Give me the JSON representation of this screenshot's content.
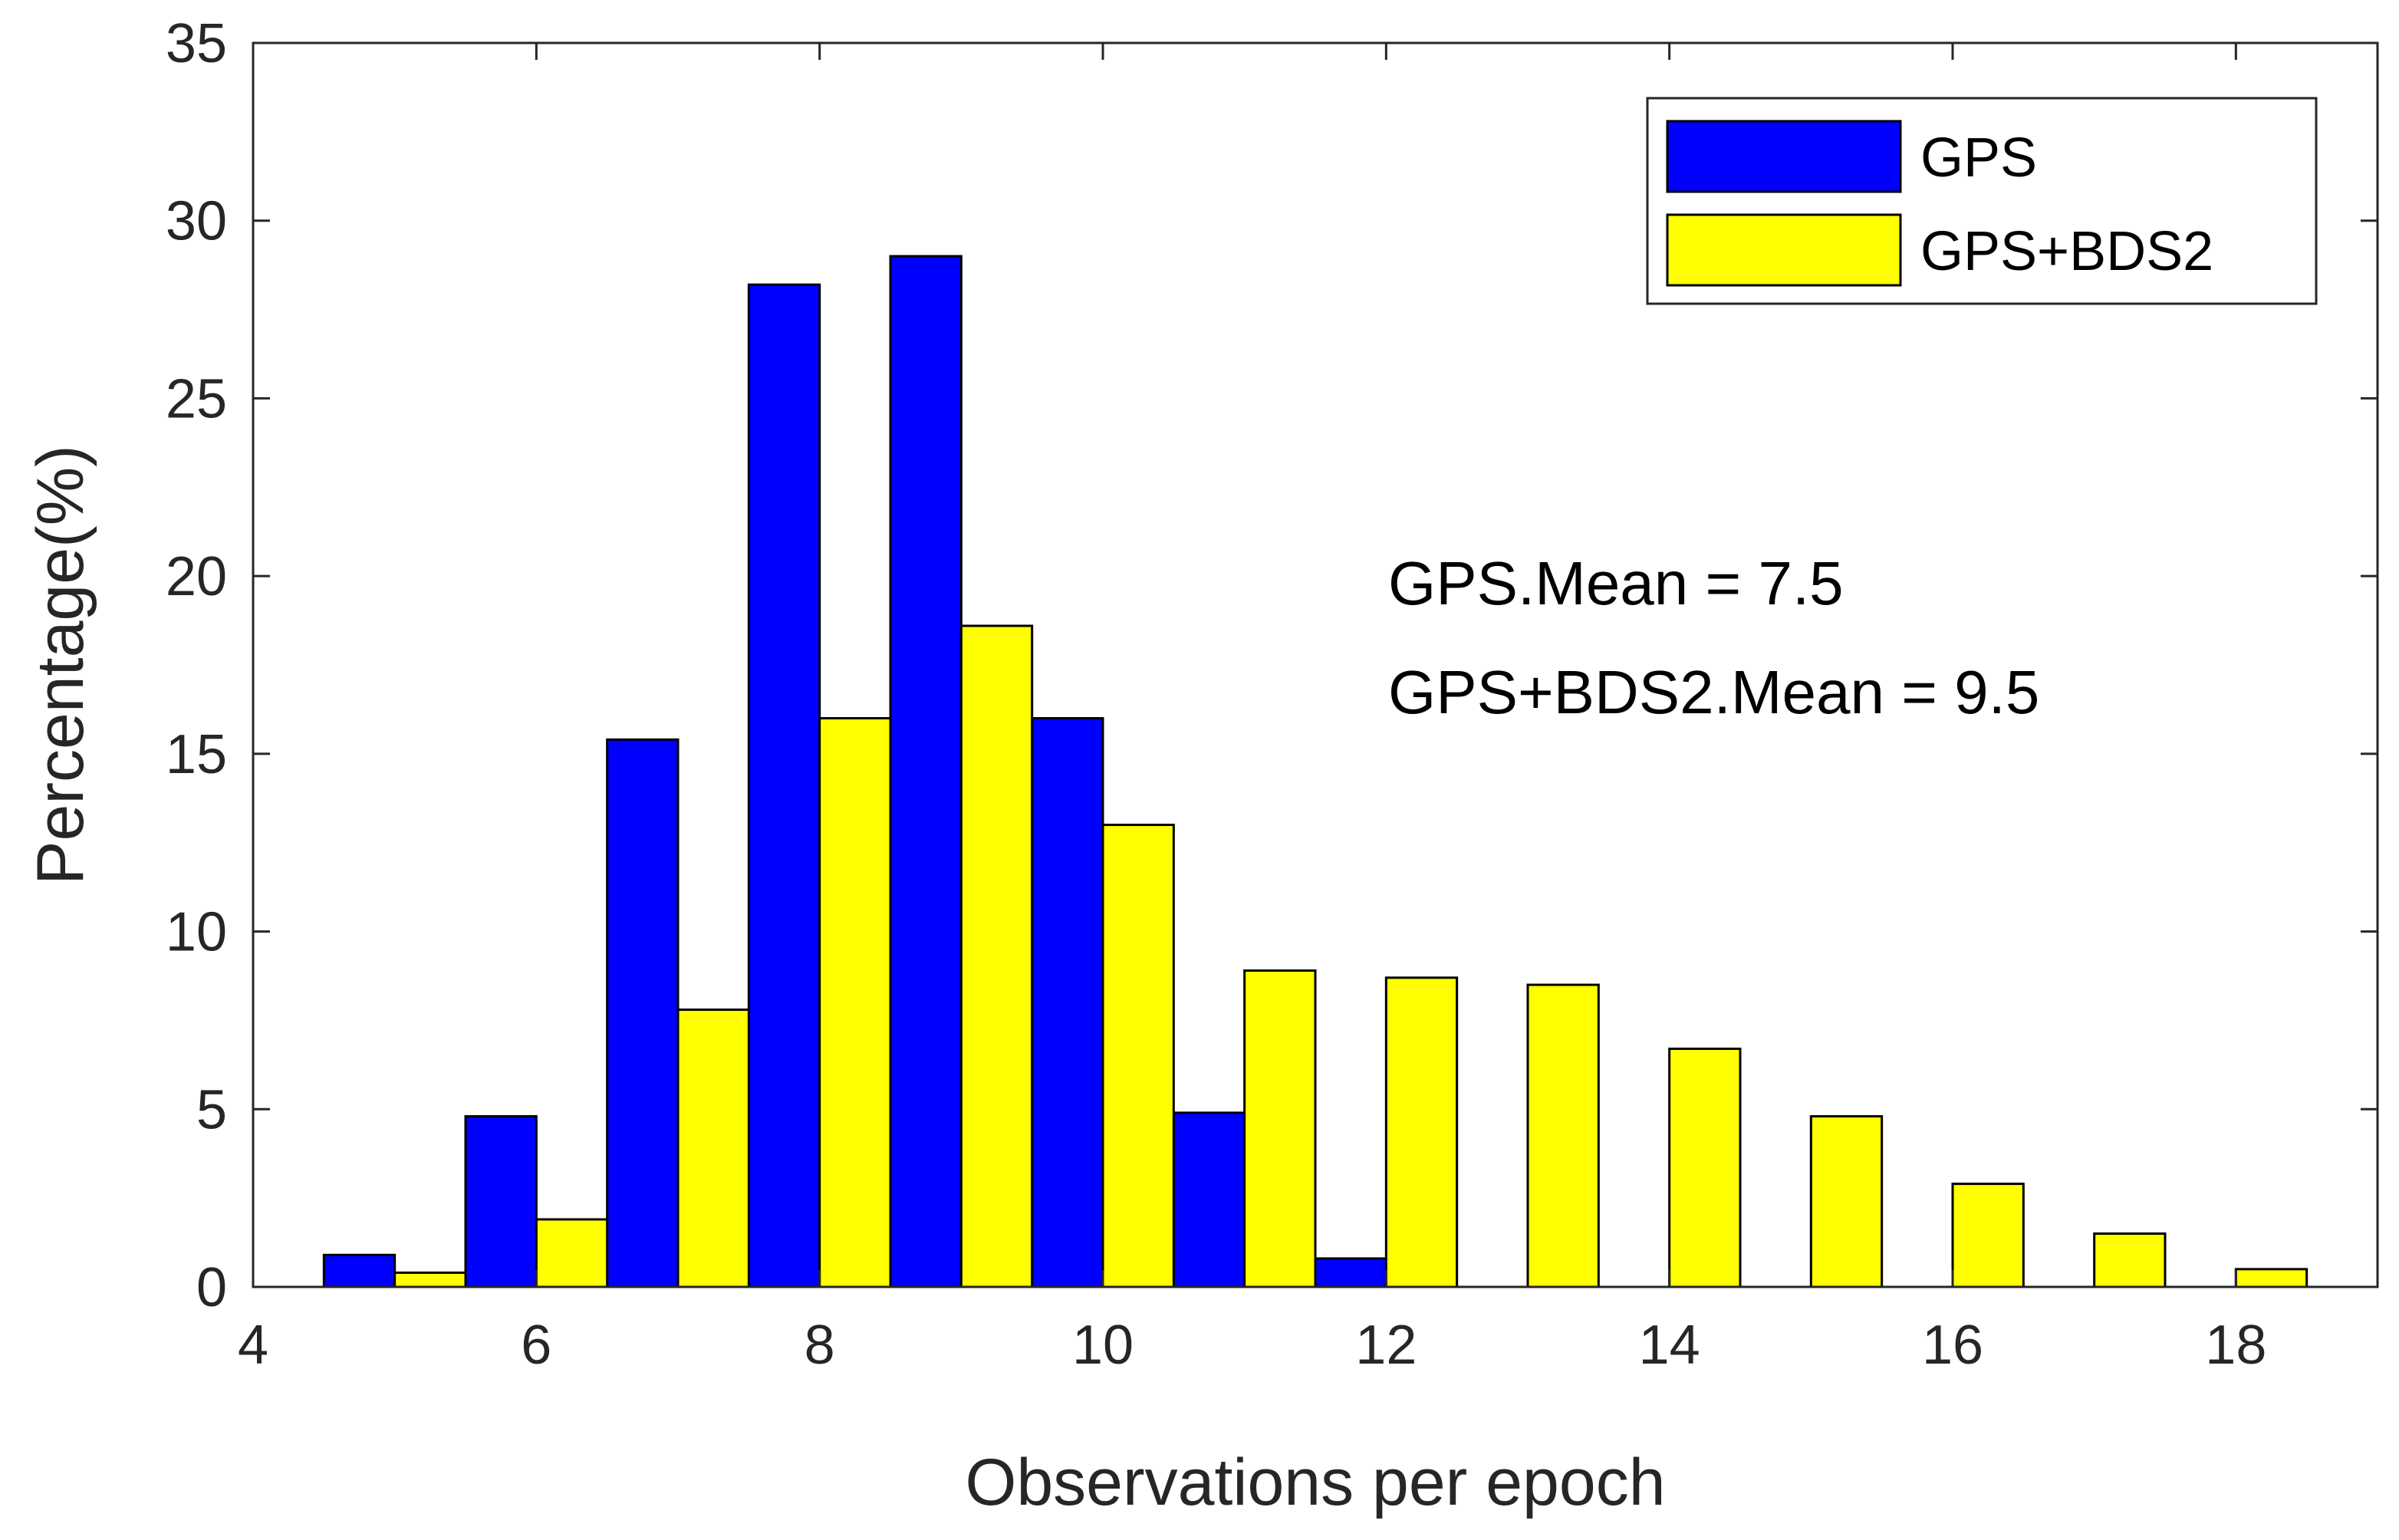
{
  "chart_data": {
    "type": "bar",
    "title": "",
    "xlabel": "Observations per epoch",
    "ylabel": "Percentage(%)",
    "xlim": [
      4,
      19
    ],
    "ylim": [
      0,
      35
    ],
    "xticks": [
      4,
      6,
      8,
      10,
      12,
      14,
      16,
      18
    ],
    "yticks": [
      0,
      5,
      10,
      15,
      20,
      25,
      30,
      35
    ],
    "bin_width": 1,
    "series": [
      {
        "name": "GPS",
        "color": "#0000ff",
        "bins": [
          {
            "x": 5,
            "value": 0.9
          },
          {
            "x": 6,
            "value": 4.8
          },
          {
            "x": 7,
            "value": 15.4
          },
          {
            "x": 8,
            "value": 28.2
          },
          {
            "x": 9,
            "value": 29.0
          },
          {
            "x": 10,
            "value": 16.0
          },
          {
            "x": 11,
            "value": 4.9
          },
          {
            "x": 12,
            "value": 0.8
          }
        ]
      },
      {
        "name": "GPS+BDS2",
        "color": "#ffff00",
        "bins": [
          {
            "x": 5,
            "value": 0.4
          },
          {
            "x": 6,
            "value": 1.9
          },
          {
            "x": 7,
            "value": 7.8
          },
          {
            "x": 8,
            "value": 16.0
          },
          {
            "x": 9,
            "value": 18.6
          },
          {
            "x": 10,
            "value": 13.0
          },
          {
            "x": 11,
            "value": 8.9
          },
          {
            "x": 12,
            "value": 8.7
          },
          {
            "x": 13,
            "value": 8.5
          },
          {
            "x": 14,
            "value": 6.7
          },
          {
            "x": 15,
            "value": 4.8
          },
          {
            "x": 16,
            "value": 2.9
          },
          {
            "x": 17,
            "value": 1.5
          },
          {
            "x": 18,
            "value": 0.5
          }
        ]
      }
    ],
    "legend": {
      "position": "top-right",
      "entries": [
        "GPS",
        "GPS+BDS2"
      ]
    },
    "annotations": [
      "GPS.Mean = 7.5",
      "GPS+BDS2.Mean = 9.5"
    ]
  }
}
